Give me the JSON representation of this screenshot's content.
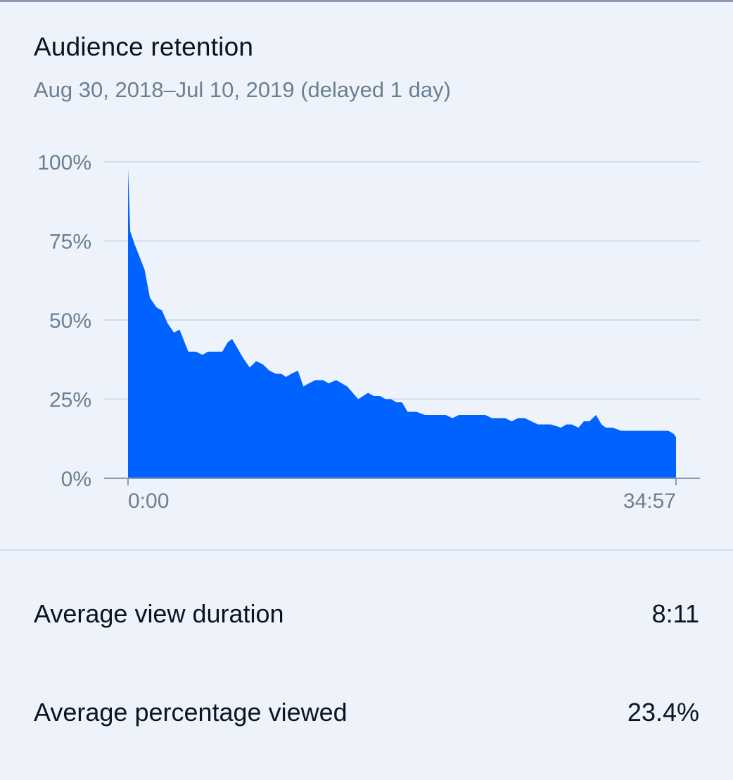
{
  "card": {
    "title": "Audience retention",
    "subtitle": "Aug 30, 2018–Jul 10, 2019 (delayed 1 day)"
  },
  "colors": {
    "area": "#0062ff",
    "gridline": "#cfdced",
    "axis": "#8c9bb0",
    "label": "#6b7f92",
    "background": "#eef3fb"
  },
  "chart_data": {
    "type": "area",
    "ylim": [
      0,
      100
    ],
    "y_ticks": [
      "100%",
      "75%",
      "50%",
      "25%",
      "0%"
    ],
    "y_tick_values": [
      100,
      75,
      50,
      25,
      0
    ],
    "x_tick_labels": [
      "0:00",
      "34:57"
    ],
    "xlim": [
      0,
      1
    ],
    "grid": true,
    "series": [
      {
        "x": [
          0,
          0.004,
          0.012,
          0.03,
          0.04,
          0.052,
          0.062,
          0.072,
          0.084,
          0.094,
          0.11,
          0.124,
          0.136,
          0.146,
          0.158,
          0.172,
          0.182,
          0.19,
          0.2,
          0.21,
          0.222,
          0.234,
          0.246,
          0.258,
          0.27,
          0.28,
          0.288,
          0.298,
          0.31,
          0.32,
          0.33,
          0.342,
          0.356,
          0.366,
          0.38,
          0.39,
          0.4,
          0.41,
          0.42,
          0.438,
          0.448,
          0.46,
          0.47,
          0.48,
          0.49,
          0.5,
          0.51,
          0.526,
          0.542,
          0.556,
          0.57,
          0.58,
          0.592,
          0.604,
          0.616,
          0.628,
          0.64,
          0.652,
          0.664,
          0.676,
          0.688,
          0.7,
          0.712,
          0.724,
          0.736,
          0.748,
          0.76,
          0.772,
          0.79,
          0.8,
          0.81,
          0.822,
          0.832,
          0.842,
          0.854,
          0.864,
          0.872,
          0.884,
          0.9,
          0.91,
          0.922,
          0.934,
          0.946,
          0.956,
          0.966,
          0.976,
          0.986,
          0.996,
          1.0
        ],
        "y": [
          98,
          78,
          74,
          66,
          57,
          54,
          53,
          49,
          46,
          47,
          40,
          40,
          39,
          40,
          40,
          40,
          43,
          44,
          41,
          38,
          35,
          37,
          36,
          34,
          33,
          33,
          32,
          33,
          34,
          29,
          30,
          31,
          31,
          30,
          31,
          30,
          29,
          27,
          25,
          27,
          26,
          26,
          25,
          25,
          24,
          24,
          21,
          21,
          20,
          20,
          20,
          20,
          19,
          20,
          20,
          20,
          20,
          20,
          19,
          19,
          19,
          18,
          19,
          19,
          18,
          17,
          17,
          17,
          16,
          17,
          17,
          16,
          18,
          18,
          20,
          17,
          16,
          16,
          15,
          15,
          15,
          15,
          15,
          15,
          15,
          15,
          15,
          14,
          13
        ]
      }
    ]
  },
  "metrics": {
    "avg_view_duration_label": "Average view duration",
    "avg_view_duration_value": "8:11",
    "avg_pct_viewed_label": "Average percentage viewed",
    "avg_pct_viewed_value": "23.4%"
  }
}
